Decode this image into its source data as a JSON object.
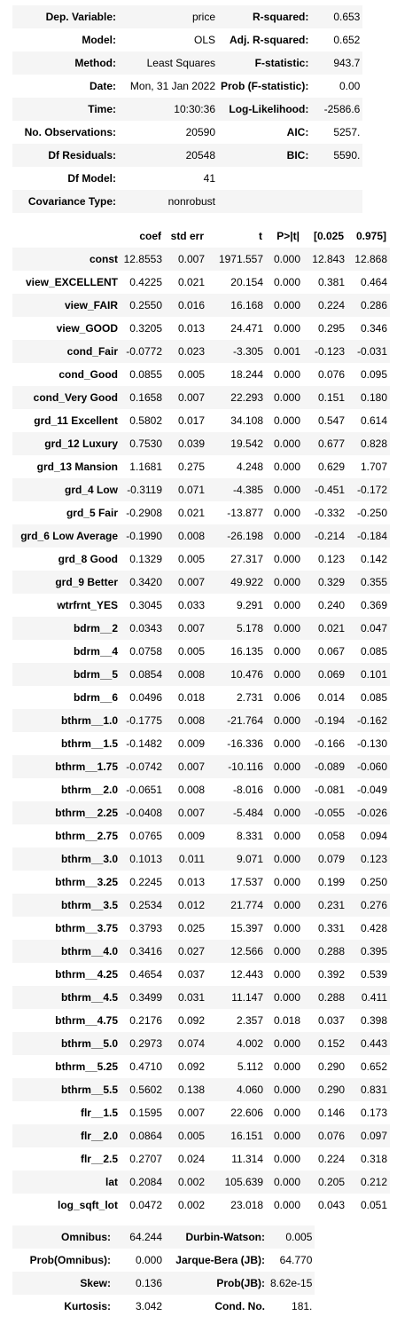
{
  "header_table": [
    [
      "Dep. Variable:",
      "price",
      "R-squared:",
      "0.653"
    ],
    [
      "Model:",
      "OLS",
      "Adj. R-squared:",
      "0.652"
    ],
    [
      "Method:",
      "Least Squares",
      "F-statistic:",
      "943.7"
    ],
    [
      "Date:",
      "Mon, 31 Jan 2022",
      "Prob (F-statistic):",
      "0.00"
    ],
    [
      "Time:",
      "10:30:36",
      "Log-Likelihood:",
      "-2586.6"
    ],
    [
      "No. Observations:",
      "20590",
      "AIC:",
      "5257."
    ],
    [
      "Df Residuals:",
      "20548",
      "BIC:",
      "5590."
    ],
    [
      "Df Model:",
      "41",
      "",
      ""
    ],
    [
      "Covariance Type:",
      "nonrobust",
      "",
      ""
    ]
  ],
  "coef_headers": [
    "",
    "coef",
    "std err",
    "t",
    "P>|t|",
    "[0.025",
    "0.975]"
  ],
  "coef_rows": [
    [
      "const",
      "12.8553",
      "0.007",
      "1971.557",
      "0.000",
      "12.843",
      "12.868"
    ],
    [
      "view_EXCELLENT",
      "0.4225",
      "0.021",
      "20.154",
      "0.000",
      "0.381",
      "0.464"
    ],
    [
      "view_FAIR",
      "0.2550",
      "0.016",
      "16.168",
      "0.000",
      "0.224",
      "0.286"
    ],
    [
      "view_GOOD",
      "0.3205",
      "0.013",
      "24.471",
      "0.000",
      "0.295",
      "0.346"
    ],
    [
      "cond_Fair",
      "-0.0772",
      "0.023",
      "-3.305",
      "0.001",
      "-0.123",
      "-0.031"
    ],
    [
      "cond_Good",
      "0.0855",
      "0.005",
      "18.244",
      "0.000",
      "0.076",
      "0.095"
    ],
    [
      "cond_Very Good",
      "0.1658",
      "0.007",
      "22.293",
      "0.000",
      "0.151",
      "0.180"
    ],
    [
      "grd_11 Excellent",
      "0.5802",
      "0.017",
      "34.108",
      "0.000",
      "0.547",
      "0.614"
    ],
    [
      "grd_12 Luxury",
      "0.7530",
      "0.039",
      "19.542",
      "0.000",
      "0.677",
      "0.828"
    ],
    [
      "grd_13 Mansion",
      "1.1681",
      "0.275",
      "4.248",
      "0.000",
      "0.629",
      "1.707"
    ],
    [
      "grd_4 Low",
      "-0.3119",
      "0.071",
      "-4.385",
      "0.000",
      "-0.451",
      "-0.172"
    ],
    [
      "grd_5 Fair",
      "-0.2908",
      "0.021",
      "-13.877",
      "0.000",
      "-0.332",
      "-0.250"
    ],
    [
      "grd_6 Low Average",
      "-0.1990",
      "0.008",
      "-26.198",
      "0.000",
      "-0.214",
      "-0.184"
    ],
    [
      "grd_8 Good",
      "0.1329",
      "0.005",
      "27.317",
      "0.000",
      "0.123",
      "0.142"
    ],
    [
      "grd_9 Better",
      "0.3420",
      "0.007",
      "49.922",
      "0.000",
      "0.329",
      "0.355"
    ],
    [
      "wtrfrnt_YES",
      "0.3045",
      "0.033",
      "9.291",
      "0.000",
      "0.240",
      "0.369"
    ],
    [
      "bdrm__2",
      "0.0343",
      "0.007",
      "5.178",
      "0.000",
      "0.021",
      "0.047"
    ],
    [
      "bdrm__4",
      "0.0758",
      "0.005",
      "16.135",
      "0.000",
      "0.067",
      "0.085"
    ],
    [
      "bdrm__5",
      "0.0854",
      "0.008",
      "10.476",
      "0.000",
      "0.069",
      "0.101"
    ],
    [
      "bdrm__6",
      "0.0496",
      "0.018",
      "2.731",
      "0.006",
      "0.014",
      "0.085"
    ],
    [
      "bthrm__1.0",
      "-0.1775",
      "0.008",
      "-21.764",
      "0.000",
      "-0.194",
      "-0.162"
    ],
    [
      "bthrm__1.5",
      "-0.1482",
      "0.009",
      "-16.336",
      "0.000",
      "-0.166",
      "-0.130"
    ],
    [
      "bthrm__1.75",
      "-0.0742",
      "0.007",
      "-10.116",
      "0.000",
      "-0.089",
      "-0.060"
    ],
    [
      "bthrm__2.0",
      "-0.0651",
      "0.008",
      "-8.016",
      "0.000",
      "-0.081",
      "-0.049"
    ],
    [
      "bthrm__2.25",
      "-0.0408",
      "0.007",
      "-5.484",
      "0.000",
      "-0.055",
      "-0.026"
    ],
    [
      "bthrm__2.75",
      "0.0765",
      "0.009",
      "8.331",
      "0.000",
      "0.058",
      "0.094"
    ],
    [
      "bthrm__3.0",
      "0.1013",
      "0.011",
      "9.071",
      "0.000",
      "0.079",
      "0.123"
    ],
    [
      "bthrm__3.25",
      "0.2245",
      "0.013",
      "17.537",
      "0.000",
      "0.199",
      "0.250"
    ],
    [
      "bthrm__3.5",
      "0.2534",
      "0.012",
      "21.774",
      "0.000",
      "0.231",
      "0.276"
    ],
    [
      "bthrm__3.75",
      "0.3793",
      "0.025",
      "15.397",
      "0.000",
      "0.331",
      "0.428"
    ],
    [
      "bthrm__4.0",
      "0.3416",
      "0.027",
      "12.566",
      "0.000",
      "0.288",
      "0.395"
    ],
    [
      "bthrm__4.25",
      "0.4654",
      "0.037",
      "12.443",
      "0.000",
      "0.392",
      "0.539"
    ],
    [
      "bthrm__4.5",
      "0.3499",
      "0.031",
      "11.147",
      "0.000",
      "0.288",
      "0.411"
    ],
    [
      "bthrm__4.75",
      "0.2176",
      "0.092",
      "2.357",
      "0.018",
      "0.037",
      "0.398"
    ],
    [
      "bthrm__5.0",
      "0.2973",
      "0.074",
      "4.002",
      "0.000",
      "0.152",
      "0.443"
    ],
    [
      "bthrm__5.25",
      "0.4710",
      "0.092",
      "5.112",
      "0.000",
      "0.290",
      "0.652"
    ],
    [
      "bthrm__5.5",
      "0.5602",
      "0.138",
      "4.060",
      "0.000",
      "0.290",
      "0.831"
    ],
    [
      "flr__1.5",
      "0.1595",
      "0.007",
      "22.606",
      "0.000",
      "0.146",
      "0.173"
    ],
    [
      "flr__2.0",
      "0.0864",
      "0.005",
      "16.151",
      "0.000",
      "0.076",
      "0.097"
    ],
    [
      "flr__2.5",
      "0.2707",
      "0.024",
      "11.314",
      "0.000",
      "0.224",
      "0.318"
    ],
    [
      "lat",
      "0.2084",
      "0.002",
      "105.639",
      "0.000",
      "0.205",
      "0.212"
    ],
    [
      "log_sqft_lot",
      "0.0472",
      "0.002",
      "23.018",
      "0.000",
      "0.043",
      "0.051"
    ]
  ],
  "diag_table": [
    [
      "Omnibus:",
      "64.244",
      "Durbin-Watson:",
      "0.005"
    ],
    [
      "Prob(Omnibus):",
      "0.000",
      "Jarque-Bera (JB):",
      "64.770"
    ],
    [
      "Skew:",
      "0.136",
      "Prob(JB):",
      "8.62e-15"
    ],
    [
      "Kurtosis:",
      "3.042",
      "Cond. No.",
      "181."
    ]
  ]
}
